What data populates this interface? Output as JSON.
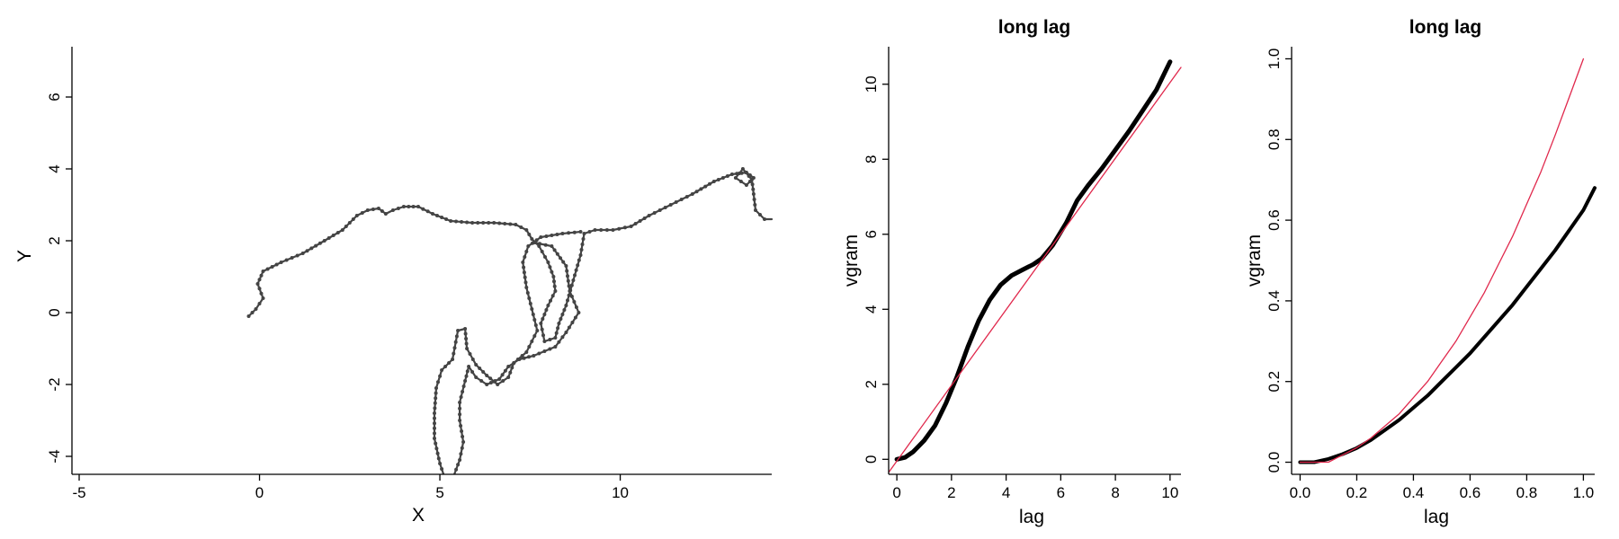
{
  "chart_data": [
    {
      "type": "line",
      "title": "",
      "xlabel": "X",
      "ylabel": "Y",
      "xlim": [
        -5.2,
        14.2
      ],
      "ylim": [
        -4.5,
        7.4
      ],
      "xticks": [
        -5,
        0,
        5,
        10
      ],
      "yticks": [
        -4,
        -2,
        0,
        2,
        4,
        6
      ],
      "grid": false,
      "series": [
        {
          "color": "#444444",
          "marker": "dot",
          "points": [
            [
              -0.3,
              -0.1
            ],
            [
              -0.1,
              0.1
            ],
            [
              0.1,
              0.4
            ],
            [
              -0.05,
              0.8
            ],
            [
              0.1,
              1.15
            ],
            [
              0.6,
              1.4
            ],
            [
              1.2,
              1.65
            ],
            [
              1.8,
              2.0
            ],
            [
              2.3,
              2.3
            ],
            [
              2.7,
              2.7
            ],
            [
              3.0,
              2.85
            ],
            [
              3.3,
              2.9
            ],
            [
              3.5,
              2.75
            ],
            [
              3.7,
              2.85
            ],
            [
              4.0,
              2.95
            ],
            [
              4.4,
              2.95
            ],
            [
              4.8,
              2.75
            ],
            [
              5.3,
              2.55
            ],
            [
              5.9,
              2.5
            ],
            [
              6.5,
              2.5
            ],
            [
              7.1,
              2.45
            ],
            [
              7.4,
              2.3
            ],
            [
              7.55,
              2.05
            ],
            [
              7.75,
              1.85
            ],
            [
              8.0,
              1.4
            ],
            [
              8.15,
              1.0
            ],
            [
              8.2,
              0.6
            ],
            [
              8.0,
              0.2
            ],
            [
              7.8,
              -0.3
            ],
            [
              7.9,
              -0.8
            ],
            [
              8.2,
              -0.7
            ],
            [
              8.3,
              -0.3
            ],
            [
              8.5,
              0.2
            ],
            [
              8.7,
              0.9
            ],
            [
              8.9,
              1.6
            ],
            [
              9.0,
              2.2
            ],
            [
              9.3,
              2.3
            ],
            [
              9.8,
              2.3
            ],
            [
              10.3,
              2.4
            ],
            [
              10.8,
              2.7
            ],
            [
              11.4,
              3.0
            ],
            [
              12.0,
              3.3
            ],
            [
              12.6,
              3.65
            ],
            [
              13.1,
              3.85
            ],
            [
              13.5,
              3.9
            ],
            [
              13.7,
              3.75
            ],
            [
              13.5,
              3.55
            ],
            [
              13.2,
              3.75
            ],
            [
              13.4,
              4.0
            ],
            [
              13.65,
              3.7
            ],
            [
              13.7,
              3.3
            ],
            [
              13.75,
              2.85
            ],
            [
              14.0,
              2.6
            ],
            [
              14.2,
              2.6
            ]
          ]
        },
        {
          "color": "#444444",
          "marker": "dot",
          "points": [
            [
              8.9,
              2.25
            ],
            [
              8.4,
              2.2
            ],
            [
              7.8,
              2.1
            ],
            [
              7.45,
              1.85
            ],
            [
              7.3,
              1.4
            ],
            [
              7.4,
              0.7
            ],
            [
              7.55,
              0.1
            ],
            [
              7.7,
              -0.5
            ],
            [
              7.4,
              -1.1
            ],
            [
              7.05,
              -1.4
            ],
            [
              6.9,
              -1.8
            ],
            [
              6.6,
              -2.0
            ],
            [
              6.3,
              -1.75
            ],
            [
              6.0,
              -1.45
            ],
            [
              5.75,
              -1.0
            ],
            [
              5.7,
              -0.45
            ],
            [
              5.5,
              -0.5
            ],
            [
              5.35,
              -1.3
            ],
            [
              5.05,
              -1.6
            ],
            [
              4.9,
              -2.1
            ],
            [
              4.85,
              -2.8
            ],
            [
              4.85,
              -3.5
            ],
            [
              5.0,
              -4.2
            ],
            [
              5.1,
              -4.5
            ]
          ]
        },
        {
          "color": "#444444",
          "marker": "dot",
          "points": [
            [
              7.6,
              1.95
            ],
            [
              8.1,
              1.85
            ],
            [
              8.5,
              1.3
            ],
            [
              8.6,
              0.6
            ],
            [
              8.85,
              0.0
            ],
            [
              8.5,
              -0.55
            ],
            [
              8.2,
              -0.95
            ],
            [
              7.6,
              -1.2
            ],
            [
              7.2,
              -1.3
            ],
            [
              6.9,
              -1.5
            ],
            [
              6.65,
              -1.85
            ],
            [
              6.3,
              -2.0
            ],
            [
              6.0,
              -1.8
            ],
            [
              5.8,
              -1.5
            ],
            [
              5.7,
              -1.9
            ],
            [
              5.55,
              -2.5
            ],
            [
              5.55,
              -3.0
            ],
            [
              5.65,
              -3.6
            ],
            [
              5.55,
              -4.1
            ],
            [
              5.4,
              -4.5
            ]
          ]
        }
      ]
    },
    {
      "type": "line",
      "title": "long lag",
      "xlabel": "lag",
      "ylabel": "vgram",
      "xlim": [
        -0.3,
        10.4
      ],
      "ylim": [
        -0.4,
        11.0
      ],
      "xticks": [
        0,
        2,
        4,
        6,
        8,
        10
      ],
      "yticks": [
        0,
        2,
        4,
        6,
        8,
        10
      ],
      "grid": false,
      "series": [
        {
          "color": "#000000",
          "points": [
            [
              0,
              0
            ],
            [
              0.3,
              0.05
            ],
            [
              0.6,
              0.2
            ],
            [
              1.0,
              0.5
            ],
            [
              1.4,
              0.9
            ],
            [
              1.8,
              1.5
            ],
            [
              2.2,
              2.2
            ],
            [
              2.6,
              3.0
            ],
            [
              3.0,
              3.7
            ],
            [
              3.4,
              4.25
            ],
            [
              3.8,
              4.65
            ],
            [
              4.2,
              4.9
            ],
            [
              4.6,
              5.05
            ],
            [
              5.0,
              5.2
            ],
            [
              5.3,
              5.35
            ],
            [
              5.7,
              5.7
            ],
            [
              6.2,
              6.3
            ],
            [
              6.6,
              6.9
            ],
            [
              7.0,
              7.3
            ],
            [
              7.5,
              7.75
            ],
            [
              8.0,
              8.25
            ],
            [
              8.5,
              8.75
            ],
            [
              9.0,
              9.3
            ],
            [
              9.5,
              9.85
            ],
            [
              9.8,
              10.3
            ],
            [
              10.0,
              10.6
            ]
          ]
        },
        {
          "color": "#e0284c",
          "points": [
            [
              -0.3,
              -0.35
            ],
            [
              10.4,
              10.45
            ]
          ]
        }
      ]
    },
    {
      "type": "line",
      "title": "long lag",
      "xlabel": "lag",
      "ylabel": "vgram",
      "xlim": [
        -0.03,
        1.04
      ],
      "ylim": [
        -0.03,
        1.03
      ],
      "xticks": [
        0.0,
        0.2,
        0.4,
        0.6,
        0.8,
        1.0
      ],
      "yticks": [
        0.0,
        0.2,
        0.4,
        0.6,
        0.8,
        1.0
      ],
      "grid": false,
      "series": [
        {
          "color": "#000000",
          "points": [
            [
              0.0,
              0.0
            ],
            [
              0.05,
              0.0
            ],
            [
              0.1,
              0.008
            ],
            [
              0.15,
              0.02
            ],
            [
              0.2,
              0.035
            ],
            [
              0.25,
              0.055
            ],
            [
              0.3,
              0.08
            ],
            [
              0.35,
              0.105
            ],
            [
              0.4,
              0.135
            ],
            [
              0.45,
              0.165
            ],
            [
              0.5,
              0.2
            ],
            [
              0.55,
              0.235
            ],
            [
              0.6,
              0.27
            ],
            [
              0.65,
              0.31
            ],
            [
              0.7,
              0.35
            ],
            [
              0.75,
              0.39
            ],
            [
              0.8,
              0.435
            ],
            [
              0.85,
              0.48
            ],
            [
              0.9,
              0.525
            ],
            [
              0.95,
              0.575
            ],
            [
              1.0,
              0.625
            ],
            [
              1.04,
              0.68
            ]
          ]
        },
        {
          "color": "#e0284c",
          "points": [
            [
              0.0,
              0.0
            ],
            [
              0.1,
              0.0
            ],
            [
              0.15,
              0.018
            ],
            [
              0.2,
              0.036
            ],
            [
              0.25,
              0.06
            ],
            [
              0.3,
              0.09
            ],
            [
              0.35,
              0.12
            ],
            [
              0.4,
              0.16
            ],
            [
              0.45,
              0.2
            ],
            [
              0.5,
              0.25
            ],
            [
              0.55,
              0.3
            ],
            [
              0.6,
              0.36
            ],
            [
              0.65,
              0.42
            ],
            [
              0.7,
              0.49
            ],
            [
              0.75,
              0.56
            ],
            [
              0.8,
              0.64
            ],
            [
              0.85,
              0.72
            ],
            [
              0.9,
              0.81
            ],
            [
              0.95,
              0.905
            ],
            [
              1.0,
              1.0
            ]
          ]
        }
      ]
    }
  ]
}
